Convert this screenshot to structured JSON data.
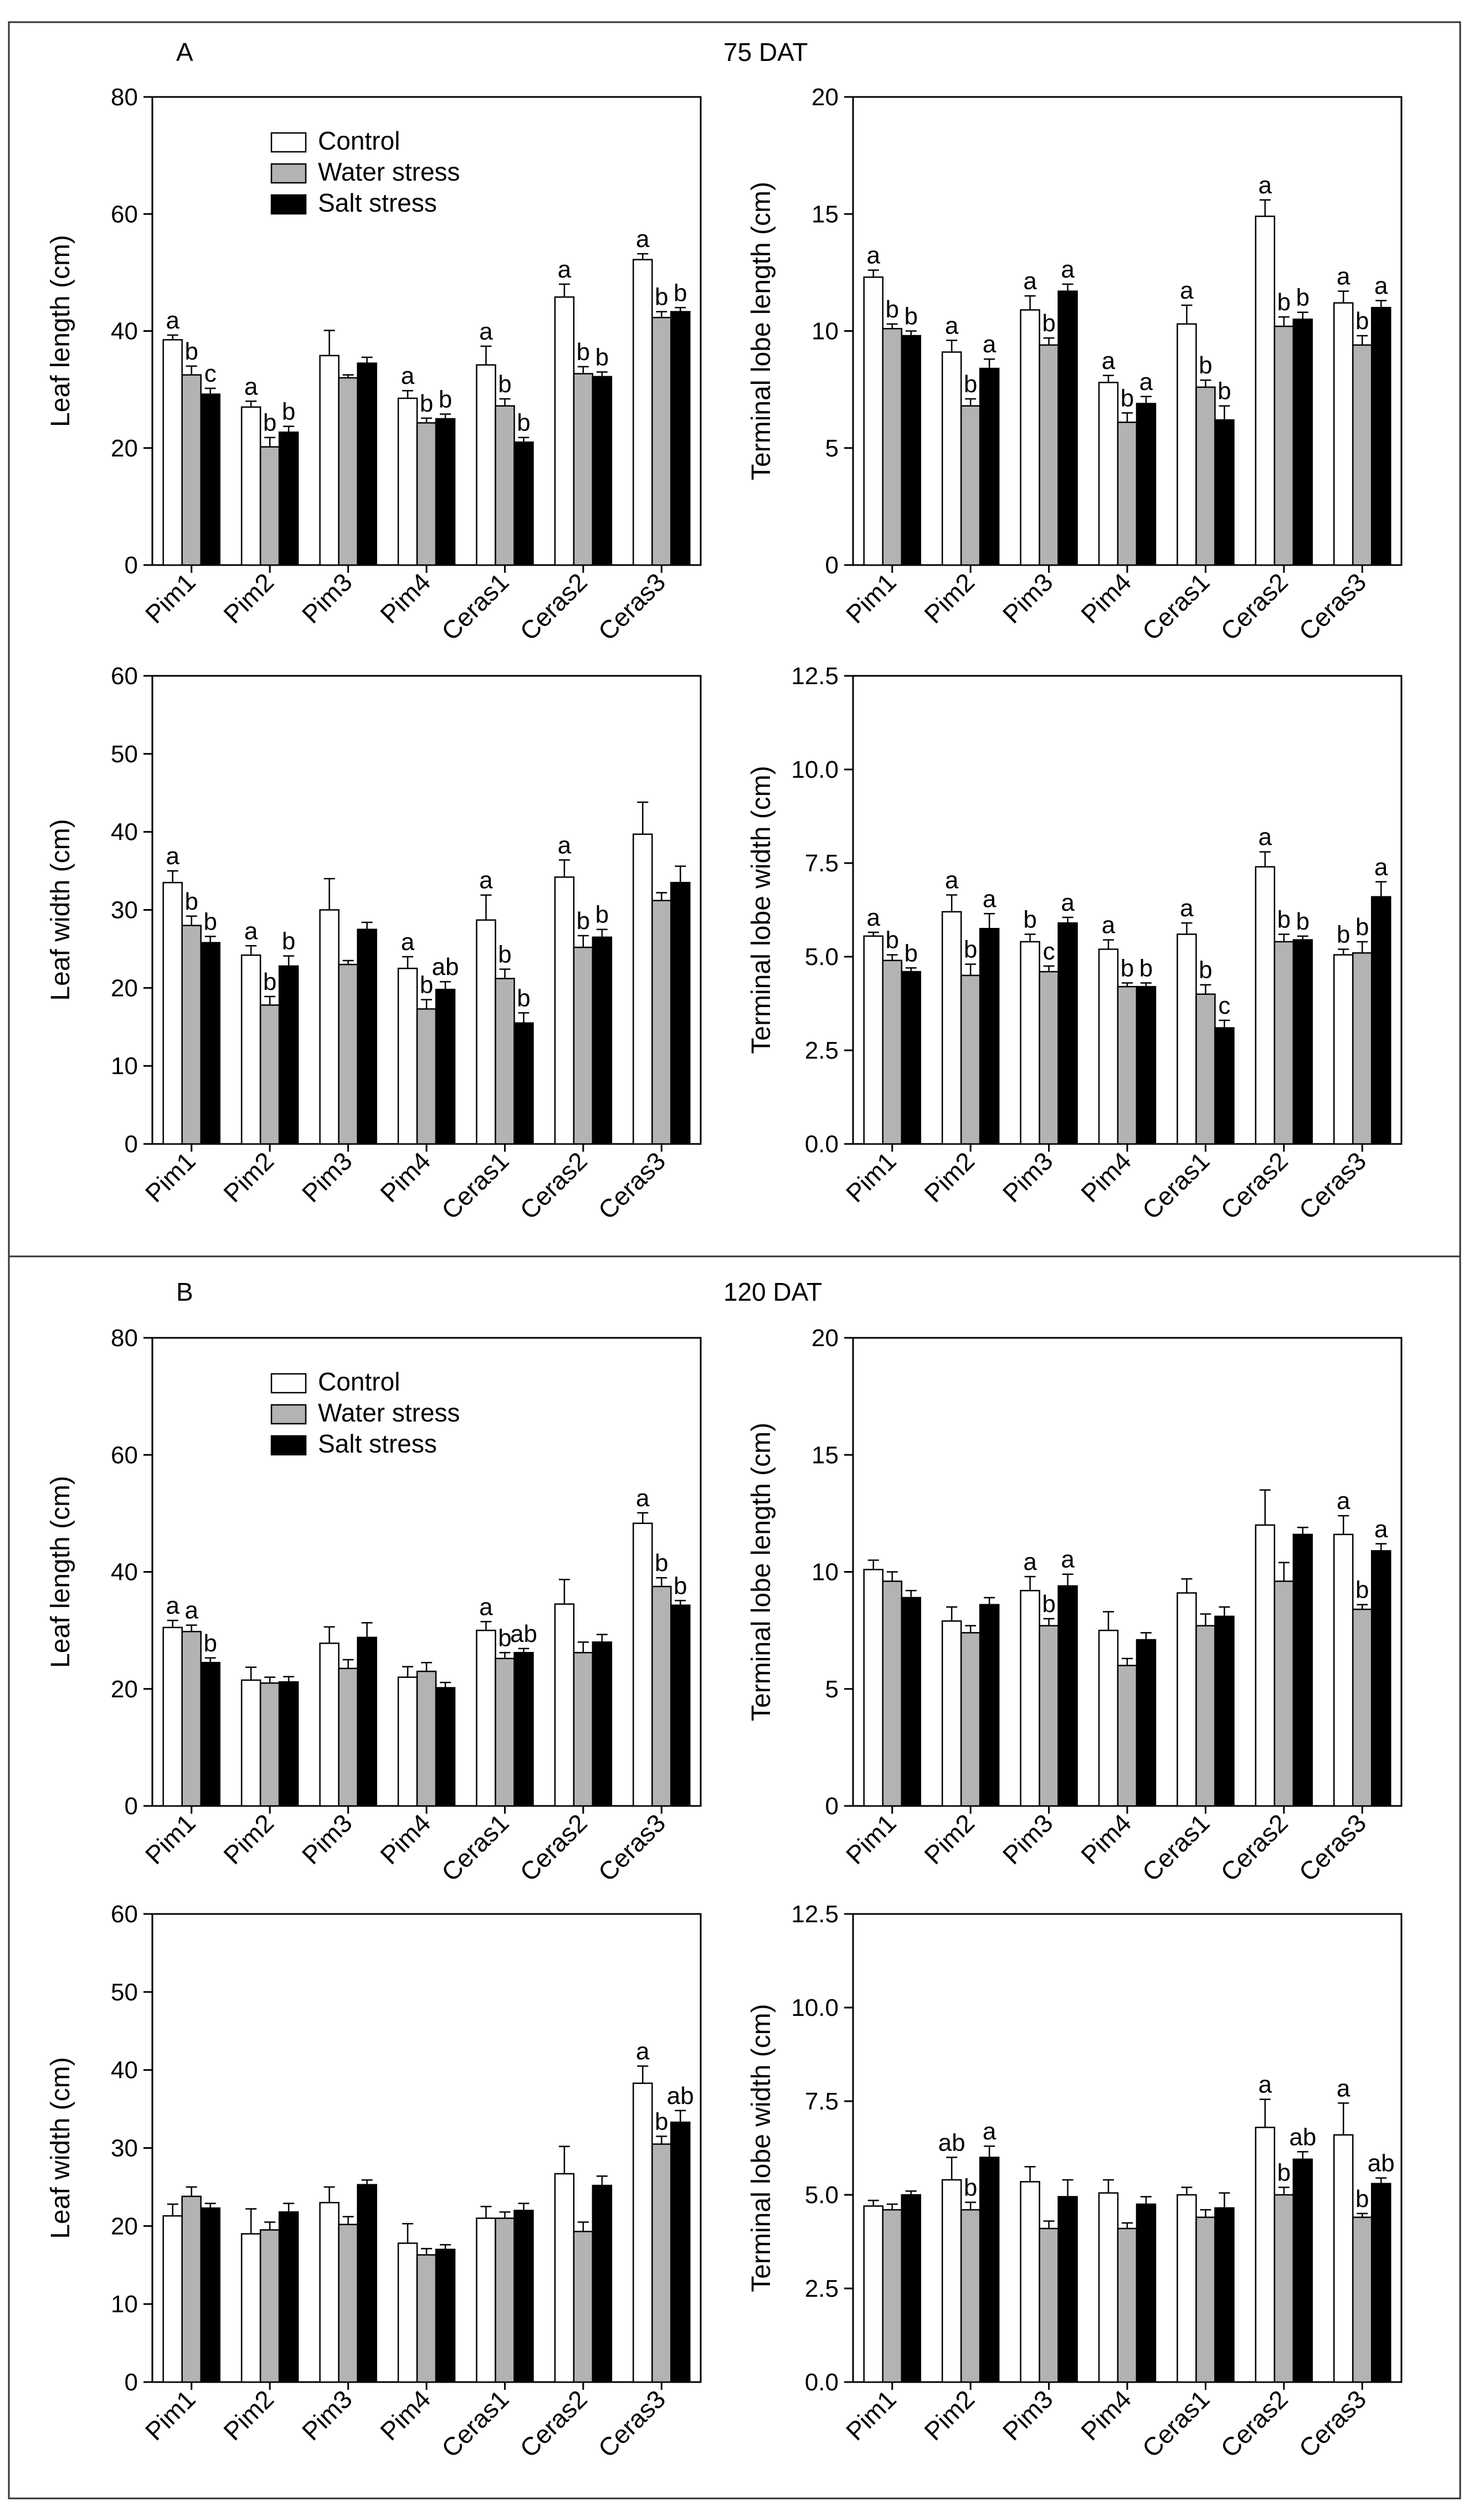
{
  "panels": [
    {
      "letter": "A",
      "label": "75 DAT"
    },
    {
      "letter": "B",
      "label": "120 DAT"
    }
  ],
  "legend": {
    "items": [
      {
        "label": "Control",
        "color": "#ffffff"
      },
      {
        "label": "Water stress",
        "color": "#b3b3b3"
      },
      {
        "label": "Salt stress",
        "color": "#000000"
      }
    ]
  },
  "chart_data": [
    {
      "type": "bar",
      "panel": "A",
      "ylabel": "Leaf length (cm)",
      "ylim": [
        0,
        80
      ],
      "yticks": [
        0,
        20,
        40,
        60,
        80
      ],
      "categories": [
        "Pim1",
        "Pim2",
        "Pim3",
        "Pim4",
        "Ceras1",
        "Ceras2",
        "Ceras3"
      ],
      "series": [
        {
          "name": "Control",
          "values": [
            38.5,
            27,
            35.8,
            28.5,
            34.2,
            45.8,
            52.2
          ],
          "errors": [
            0.8,
            1.0,
            4.3,
            1.3,
            3.2,
            2.2,
            1.0
          ],
          "letters": [
            "a",
            "a",
            "",
            "a",
            "a",
            "a",
            "a"
          ]
        },
        {
          "name": "Water stress",
          "values": [
            32.5,
            20.2,
            32,
            24.3,
            27.2,
            32.7,
            42.3
          ],
          "errors": [
            1.5,
            1.6,
            0.5,
            0.8,
            1.2,
            1.2,
            1.0
          ],
          "letters": [
            "b",
            "b",
            "",
            "b",
            "b",
            "b",
            "b"
          ]
        },
        {
          "name": "Salt stress",
          "values": [
            29.2,
            22.7,
            34.5,
            25,
            21,
            32.2,
            43.3
          ],
          "errors": [
            1.0,
            1.0,
            1.0,
            0.8,
            0.8,
            0.8,
            0.7
          ],
          "letters": [
            "c",
            "b",
            "",
            "b",
            "b",
            "b",
            "b"
          ]
        }
      ]
    },
    {
      "type": "bar",
      "panel": "A",
      "ylabel": "Terminal lobe length (cm)",
      "ylim": [
        0,
        20
      ],
      "yticks": [
        0,
        5,
        10,
        15,
        20
      ],
      "categories": [
        "Pim1",
        "Pim2",
        "Pim3",
        "Pim4",
        "Ceras1",
        "Ceras2",
        "Ceras3"
      ],
      "series": [
        {
          "name": "Control",
          "values": [
            12.3,
            9.1,
            10.9,
            7.8,
            10.3,
            14.9,
            11.2
          ],
          "errors": [
            0.3,
            0.5,
            0.6,
            0.3,
            0.8,
            0.7,
            0.5
          ],
          "letters": [
            "a",
            "a",
            "a",
            "a",
            "a",
            "a",
            "a"
          ]
        },
        {
          "name": "Water stress",
          "values": [
            10.1,
            6.8,
            9.4,
            6.1,
            7.6,
            10.2,
            9.4
          ],
          "errors": [
            0.2,
            0.3,
            0.3,
            0.4,
            0.3,
            0.4,
            0.4
          ],
          "letters": [
            "b",
            "b",
            "b",
            "b",
            "b",
            "b",
            "b"
          ]
        },
        {
          "name": "Salt stress",
          "values": [
            9.8,
            8.4,
            11.7,
            6.9,
            6.2,
            10.5,
            11
          ],
          "errors": [
            0.2,
            0.4,
            0.3,
            0.3,
            0.6,
            0.3,
            0.3
          ],
          "letters": [
            "b",
            "a",
            "a",
            "a",
            "b",
            "b",
            "a"
          ]
        }
      ]
    },
    {
      "type": "bar",
      "panel": "A",
      "ylabel": "Leaf width (cm)",
      "ylim": [
        0,
        60
      ],
      "yticks": [
        0,
        10,
        20,
        30,
        40,
        50,
        60
      ],
      "categories": [
        "Pim1",
        "Pim2",
        "Pim3",
        "Pim4",
        "Ceras1",
        "Ceras2",
        "Ceras3"
      ],
      "series": [
        {
          "name": "Control",
          "values": [
            33.5,
            24.2,
            30,
            22.5,
            28.7,
            34.2,
            39.7
          ],
          "errors": [
            1.5,
            1.2,
            4.0,
            1.5,
            3.2,
            2.2,
            4.1
          ],
          "letters": [
            "a",
            "a",
            "",
            "a",
            "a",
            "a",
            ""
          ]
        },
        {
          "name": "Water stress",
          "values": [
            28,
            17.8,
            23,
            17.3,
            21.2,
            25.2,
            31.2
          ],
          "errors": [
            1.2,
            1.1,
            0.5,
            1.2,
            1.2,
            1.5,
            1.0
          ],
          "letters": [
            "b",
            "b",
            "",
            "b",
            "b",
            "b",
            ""
          ]
        },
        {
          "name": "Salt stress",
          "values": [
            25.8,
            22.8,
            27.5,
            19.8,
            15.5,
            26.5,
            33.5
          ],
          "errors": [
            0.8,
            1.3,
            0.9,
            1.0,
            1.3,
            1.0,
            2.1
          ],
          "letters": [
            "b",
            "b",
            "",
            "ab",
            "b",
            "b",
            ""
          ]
        }
      ]
    },
    {
      "type": "bar",
      "panel": "A",
      "ylabel": "Terminal lobe width (cm)",
      "ylim": [
        0,
        12.5
      ],
      "yticks": [
        "0.0",
        "2.5",
        "5.0",
        "7.5",
        "10.0",
        "12.5"
      ],
      "categories": [
        "Pim1",
        "Pim2",
        "Pim3",
        "Pim4",
        "Ceras1",
        "Ceras2",
        "Ceras3"
      ],
      "series": [
        {
          "name": "Control",
          "values": [
            5.55,
            6.2,
            5.4,
            5.2,
            5.6,
            7.4,
            5.05
          ],
          "errors": [
            0.1,
            0.45,
            0.2,
            0.25,
            0.3,
            0.4,
            0.15
          ],
          "letters": [
            "a",
            "a",
            "b",
            "a",
            "a",
            "a",
            "b"
          ]
        },
        {
          "name": "Water stress",
          "values": [
            4.9,
            4.5,
            4.6,
            4.2,
            4,
            5.4,
            5.1
          ],
          "errors": [
            0.15,
            0.3,
            0.15,
            0.1,
            0.25,
            0.2,
            0.3
          ],
          "letters": [
            "b",
            "b",
            "c",
            "b",
            "b",
            "b",
            "b"
          ]
        },
        {
          "name": "Salt stress",
          "values": [
            4.6,
            5.75,
            5.9,
            4.2,
            3.1,
            5.45,
            6.6
          ],
          "errors": [
            0.1,
            0.4,
            0.15,
            0.1,
            0.2,
            0.1,
            0.4
          ],
          "letters": [
            "b",
            "a",
            "a",
            "b",
            "c",
            "b",
            "a"
          ]
        }
      ]
    },
    {
      "type": "bar",
      "panel": "B",
      "ylabel": "Leaf length (cm)",
      "ylim": [
        0,
        80
      ],
      "yticks": [
        0,
        20,
        40,
        60,
        80
      ],
      "categories": [
        "Pim1",
        "Pim2",
        "Pim3",
        "Pim4",
        "Ceras1",
        "Ceras2",
        "Ceras3"
      ],
      "series": [
        {
          "name": "Control",
          "values": [
            30.5,
            21.5,
            27.8,
            22,
            30,
            34.5,
            48.3
          ],
          "errors": [
            1.2,
            2.2,
            2.8,
            1.8,
            1.5,
            4.2,
            1.8
          ],
          "letters": [
            "a",
            "",
            "",
            "",
            "a",
            "",
            "a"
          ]
        },
        {
          "name": "Water stress",
          "values": [
            29.8,
            21,
            23.5,
            23,
            25.2,
            26.2,
            37.5
          ],
          "errors": [
            1.1,
            1.0,
            1.5,
            1.5,
            1.0,
            1.8,
            1.5
          ],
          "letters": [
            "a",
            "",
            "",
            "",
            "b",
            "",
            "b"
          ]
        },
        {
          "name": "Salt stress",
          "values": [
            24.5,
            21.2,
            28.8,
            20.2,
            26.2,
            28,
            34.3
          ],
          "errors": [
            0.8,
            0.9,
            2.5,
            0.9,
            0.7,
            1.3,
            0.8
          ],
          "letters": [
            "b",
            "",
            "",
            "",
            "ab",
            "",
            "b"
          ]
        }
      ]
    },
    {
      "type": "bar",
      "panel": "B",
      "ylabel": "Terminal lobe length (cm)",
      "ylim": [
        0,
        20
      ],
      "yticks": [
        0,
        5,
        10,
        15,
        20
      ],
      "categories": [
        "Pim1",
        "Pim2",
        "Pim3",
        "Pim4",
        "Ceras1",
        "Ceras2",
        "Ceras3"
      ],
      "series": [
        {
          "name": "Control",
          "values": [
            10.1,
            7.9,
            9.2,
            7.5,
            9.1,
            12,
            11.6
          ],
          "errors": [
            0.4,
            0.6,
            0.6,
            0.8,
            0.6,
            1.5,
            0.8
          ],
          "letters": [
            "",
            "",
            "a",
            "",
            "",
            "",
            "a"
          ]
        },
        {
          "name": "Water stress",
          "values": [
            9.6,
            7.4,
            7.7,
            6,
            7.7,
            9.6,
            8.4
          ],
          "errors": [
            0.4,
            0.3,
            0.3,
            0.3,
            0.5,
            0.8,
            0.2
          ],
          "letters": [
            "",
            "",
            "b",
            "",
            "",
            "",
            "b"
          ]
        },
        {
          "name": "Salt stress",
          "values": [
            8.9,
            8.6,
            9.4,
            7.1,
            8.1,
            11.6,
            10.9
          ],
          "errors": [
            0.3,
            0.3,
            0.5,
            0.3,
            0.4,
            0.3,
            0.3
          ],
          "letters": [
            "",
            "",
            "a",
            "",
            "",
            "",
            "a"
          ]
        }
      ]
    },
    {
      "type": "bar",
      "panel": "B",
      "ylabel": "Leaf width (cm)",
      "ylim": [
        0,
        60
      ],
      "yticks": [
        0,
        10,
        20,
        30,
        40,
        50,
        60
      ],
      "categories": [
        "Pim1",
        "Pim2",
        "Pim3",
        "Pim4",
        "Ceras1",
        "Ceras2",
        "Ceras3"
      ],
      "series": [
        {
          "name": "Control",
          "values": [
            21.3,
            19,
            23,
            17.8,
            21,
            26.7,
            38.3
          ],
          "errors": [
            1.5,
            3.2,
            2.0,
            2.5,
            1.5,
            3.5,
            2.2
          ],
          "letters": [
            "",
            "",
            "",
            "",
            "",
            "",
            "a"
          ]
        },
        {
          "name": "Water stress",
          "values": [
            23.8,
            19.5,
            20.2,
            16.3,
            21,
            19.3,
            30.5
          ],
          "errors": [
            1.2,
            1.0,
            1.0,
            0.8,
            0.8,
            1.2,
            1.0
          ],
          "letters": [
            "",
            "",
            "",
            "",
            "",
            "",
            "b"
          ]
        },
        {
          "name": "Salt stress",
          "values": [
            22.3,
            21.8,
            25.3,
            17,
            22,
            25.2,
            33.3
          ],
          "errors": [
            0.6,
            1.1,
            0.6,
            0.6,
            0.9,
            1.2,
            1.5
          ],
          "letters": [
            "",
            "",
            "",
            "",
            "",
            "",
            "ab"
          ]
        }
      ]
    },
    {
      "type": "bar",
      "panel": "B",
      "ylabel": "Terminal lobe width (cm)",
      "ylim": [
        0,
        12.5
      ],
      "yticks": [
        "0.0",
        "2.5",
        "5.0",
        "7.5",
        "10.0",
        "12.5"
      ],
      "categories": [
        "Pim1",
        "Pim2",
        "Pim3",
        "Pim4",
        "Ceras1",
        "Ceras2",
        "Ceras3"
      ],
      "series": [
        {
          "name": "Control",
          "values": [
            4.7,
            5.4,
            5.35,
            5.05,
            5,
            6.8,
            6.6
          ],
          "errors": [
            0.15,
            0.6,
            0.4,
            0.35,
            0.2,
            0.75,
            0.85
          ],
          "letters": [
            "",
            "ab",
            "",
            "",
            "",
            "a",
            "a"
          ]
        },
        {
          "name": "Water stress",
          "values": [
            4.6,
            4.6,
            4.1,
            4.1,
            4.4,
            5,
            4.4
          ],
          "errors": [
            0.15,
            0.2,
            0.2,
            0.15,
            0.2,
            0.2,
            0.1
          ],
          "letters": [
            "",
            "b",
            "",
            "",
            "",
            "b",
            "b"
          ]
        },
        {
          "name": "Salt stress",
          "values": [
            5,
            6,
            4.95,
            4.75,
            4.65,
            5.95,
            5.3
          ],
          "errors": [
            0.1,
            0.3,
            0.45,
            0.2,
            0.4,
            0.2,
            0.15
          ],
          "letters": [
            "",
            "a",
            "",
            "",
            "",
            "ab",
            "ab"
          ]
        }
      ]
    }
  ]
}
